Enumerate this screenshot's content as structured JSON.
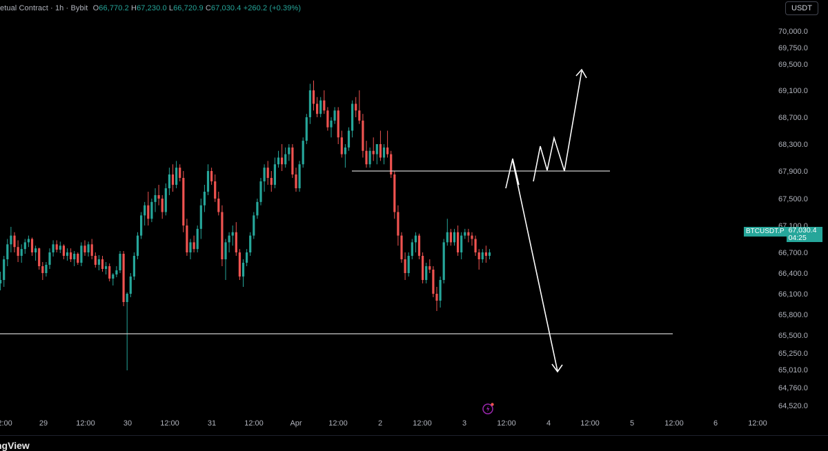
{
  "legend": {
    "title": "etual Contract · 1h · Bybit",
    "open_label": "O",
    "open": "66,770.2",
    "high_label": "H",
    "high": "67,230.0",
    "low_label": "L",
    "low": "66,720.9",
    "close_label": "C",
    "close": "67,030.4",
    "change": "+260.2 (+0.39%)"
  },
  "toolbar": {
    "currency_button": "USDT"
  },
  "price_tag": {
    "symbol": "BTCUSDT.P",
    "price": "67,030.4",
    "countdown": "04:25"
  },
  "footer": {
    "brand": "ngView"
  },
  "colors": {
    "up": "#26a69a",
    "down": "#ef5350",
    "background": "#000000",
    "drawing": "#ffffff",
    "alert": "#9c27b0"
  },
  "icons": {
    "alert": "alert-lightning-icon"
  },
  "chart_data": {
    "type": "candlestick",
    "y_ticks": [
      "70,000.0",
      "69,750.0",
      "69,500.0",
      "69,100.0",
      "68,700.0",
      "68,300.0",
      "67,900.0",
      "67,500.0",
      "67,100.0",
      "66,700.0",
      "66,400.0",
      "66,100.0",
      "65,800.0",
      "65,500.0",
      "65,250.0",
      "65,010.0",
      "64,760.0",
      "64,520.0"
    ],
    "x_ticks": [
      "12:00",
      "29",
      "12:00",
      "30",
      "12:00",
      "31",
      "12:00",
      "Apr",
      "12:00",
      "2",
      "12:00",
      "3",
      "12:00",
      "4",
      "12:00",
      "5",
      "12:00",
      "6",
      "12:00"
    ],
    "horizontal_levels": [
      67880,
      65520
    ],
    "projection_paths": [
      [
        [
          67620,
          0
        ],
        [
          68050,
          2
        ],
        [
          67800,
          5
        ]
      ],
      [
        [
          67870,
          0
        ],
        [
          68250,
          1
        ],
        [
          67870,
          2
        ],
        [
          68350,
          3
        ],
        [
          67880,
          4
        ],
        [
          69480,
          6
        ]
      ],
      [
        [
          68050,
          0
        ],
        [
          65000,
          2
        ]
      ]
    ],
    "candles": [
      [
        66250,
        66420,
        66150,
        66300
      ],
      [
        66300,
        66650,
        66200,
        66600
      ],
      [
        66600,
        66900,
        66500,
        66820
      ],
      [
        66820,
        67080,
        66700,
        66950
      ],
      [
        66950,
        67000,
        66700,
        66780
      ],
      [
        66780,
        66880,
        66560,
        66650
      ],
      [
        66650,
        66820,
        66550,
        66750
      ],
      [
        66750,
        66900,
        66680,
        66850
      ],
      [
        66850,
        66950,
        66780,
        66900
      ],
      [
        66900,
        66920,
        66650,
        66700
      ],
      [
        66700,
        66800,
        66580,
        66760
      ],
      [
        66760,
        66770,
        66450,
        66500
      ],
      [
        66500,
        66560,
        66300,
        66400
      ],
      [
        66400,
        66560,
        66350,
        66520
      ],
      [
        66520,
        66760,
        66460,
        66700
      ],
      [
        66700,
        66880,
        66640,
        66820
      ],
      [
        66820,
        66880,
        66700,
        66740
      ],
      [
        66740,
        66860,
        66690,
        66800
      ],
      [
        66800,
        66820,
        66600,
        66650
      ],
      [
        66650,
        66760,
        66580,
        66700
      ],
      [
        66700,
        66760,
        66560,
        66600
      ],
      [
        66600,
        66720,
        66500,
        66680
      ],
      [
        66680,
        66700,
        66520,
        66550
      ],
      [
        66550,
        66850,
        66500,
        66800
      ],
      [
        66800,
        66880,
        66650,
        66700
      ],
      [
        66700,
        66860,
        66640,
        66820
      ],
      [
        66820,
        66900,
        66600,
        66650
      ],
      [
        66650,
        66700,
        66480,
        66520
      ],
      [
        66520,
        66660,
        66440,
        66600
      ],
      [
        66600,
        66650,
        66420,
        66460
      ],
      [
        66460,
        66560,
        66380,
        66500
      ],
      [
        66500,
        66540,
        66280,
        66320
      ],
      [
        66320,
        66400,
        66220,
        66380
      ],
      [
        66380,
        66500,
        66340,
        66440
      ],
      [
        66440,
        66720,
        66400,
        66680
      ],
      [
        66680,
        66720,
        65920,
        65980
      ],
      [
        65980,
        66120,
        65000,
        66100
      ],
      [
        66100,
        66400,
        66050,
        66350
      ],
      [
        66350,
        66700,
        66300,
        66650
      ],
      [
        66650,
        67000,
        66600,
        66950
      ],
      [
        66950,
        67300,
        66900,
        67250
      ],
      [
        67250,
        67450,
        67100,
        67400
      ],
      [
        67400,
        67600,
        67100,
        67200
      ],
      [
        67200,
        67500,
        67150,
        67450
      ],
      [
        67450,
        67650,
        67300,
        67550
      ],
      [
        67550,
        67700,
        67400,
        67500
      ],
      [
        67500,
        67550,
        67200,
        67300
      ],
      [
        67300,
        67720,
        67250,
        67650
      ],
      [
        67650,
        67950,
        67550,
        67850
      ],
      [
        67850,
        68000,
        67600,
        67700
      ],
      [
        67700,
        68050,
        67650,
        67950
      ],
      [
        67950,
        68000,
        67750,
        67800
      ],
      [
        67800,
        67900,
        67000,
        67100
      ],
      [
        67100,
        67200,
        66650,
        66700
      ],
      [
        66700,
        66900,
        66600,
        66850
      ],
      [
        66850,
        66950,
        66700,
        66750
      ],
      [
        66750,
        67100,
        66700,
        67050
      ],
      [
        67050,
        67500,
        66900,
        67400
      ],
      [
        67400,
        67700,
        67300,
        67600
      ],
      [
        67600,
        68000,
        67550,
        67900
      ],
      [
        67900,
        67950,
        67700,
        67750
      ],
      [
        67750,
        67850,
        67450,
        67500
      ],
      [
        67500,
        67600,
        67250,
        67300
      ],
      [
        67300,
        67400,
        66500,
        66600
      ],
      [
        66600,
        66900,
        66300,
        66850
      ],
      [
        66850,
        67000,
        66700,
        66950
      ],
      [
        66950,
        67100,
        66800,
        67000
      ],
      [
        67000,
        67150,
        66650,
        66700
      ],
      [
        66700,
        66750,
        66300,
        66350
      ],
      [
        66350,
        66600,
        66200,
        66550
      ],
      [
        66550,
        66750,
        66500,
        66700
      ],
      [
        66700,
        67000,
        66650,
        66950
      ],
      [
        66950,
        67300,
        66900,
        67250
      ],
      [
        67250,
        67500,
        67200,
        67450
      ],
      [
        67450,
        67800,
        67400,
        67750
      ],
      [
        67750,
        68000,
        67600,
        67950
      ],
      [
        67950,
        68050,
        67700,
        67800
      ],
      [
        67800,
        67900,
        67600,
        67700
      ],
      [
        67700,
        68100,
        67650,
        68000
      ],
      [
        68000,
        68200,
        67950,
        68100
      ],
      [
        68100,
        68300,
        67900,
        68000
      ],
      [
        68000,
        68250,
        67950,
        68150
      ],
      [
        68150,
        68300,
        68050,
        68250
      ],
      [
        68250,
        68300,
        67800,
        67850
      ],
      [
        67850,
        67950,
        67600,
        67650
      ],
      [
        67650,
        68050,
        67600,
        68000
      ],
      [
        68000,
        68400,
        67950,
        68350
      ],
      [
        68350,
        68750,
        68300,
        68700
      ],
      [
        68700,
        69200,
        68600,
        69100
      ],
      [
        69100,
        69250,
        68800,
        68900
      ],
      [
        68900,
        69000,
        68700,
        68750
      ],
      [
        68750,
        69000,
        68700,
        68950
      ],
      [
        68950,
        69100,
        68750,
        68800
      ],
      [
        68800,
        68850,
        68500,
        68550
      ],
      [
        68550,
        68700,
        68400,
        68650
      ],
      [
        68650,
        68850,
        68600,
        68800
      ],
      [
        68800,
        68850,
        68300,
        68400
      ],
      [
        68400,
        68500,
        68100,
        68150
      ],
      [
        68150,
        68300,
        67950,
        68250
      ],
      [
        68250,
        68550,
        68200,
        68500
      ],
      [
        68500,
        68950,
        68400,
        68900
      ],
      [
        68900,
        69000,
        68700,
        68800
      ],
      [
        68800,
        69100,
        68600,
        68650
      ],
      [
        68650,
        68750,
        68100,
        68200
      ],
      [
        68200,
        68350,
        67950,
        68000
      ],
      [
        68000,
        68250,
        67950,
        68200
      ],
      [
        68200,
        68400,
        68050,
        68150
      ],
      [
        68150,
        68300,
        68000,
        68300
      ],
      [
        68300,
        68500,
        68050,
        68100
      ],
      [
        68100,
        68300,
        68000,
        68250
      ],
      [
        68250,
        68500,
        68100,
        68150
      ],
      [
        68150,
        68200,
        67800,
        67850
      ],
      [
        67850,
        67900,
        67200,
        67300
      ],
      [
        67300,
        67400,
        66800,
        66950
      ],
      [
        66950,
        67000,
        66550,
        66600
      ],
      [
        66600,
        66700,
        66300,
        66400
      ],
      [
        66400,
        66700,
        66350,
        66650
      ],
      [
        66650,
        66900,
        66600,
        66850
      ],
      [
        66850,
        67000,
        66700,
        66950
      ],
      [
        66950,
        66980,
        66600,
        66650
      ],
      [
        66650,
        66700,
        66250,
        66300
      ],
      [
        66300,
        66550,
        66250,
        66500
      ],
      [
        66500,
        66600,
        66400,
        66450
      ],
      [
        66450,
        66500,
        66050,
        66100
      ],
      [
        66100,
        66200,
        65850,
        66000
      ],
      [
        66000,
        66350,
        65900,
        66300
      ],
      [
        66300,
        66900,
        66250,
        66850
      ],
      [
        66850,
        67200,
        66800,
        67000
      ],
      [
        67000,
        67050,
        66800,
        66850
      ],
      [
        66850,
        67050,
        66800,
        67000
      ],
      [
        67000,
        67100,
        66650,
        66700
      ],
      [
        66700,
        67000,
        66600,
        66950
      ],
      [
        66950,
        67050,
        66900,
        67000
      ],
      [
        67000,
        67050,
        66850,
        66950
      ],
      [
        66950,
        67000,
        66800,
        66900
      ],
      [
        66900,
        66950,
        66650,
        66700
      ],
      [
        66700,
        66750,
        66450,
        66600
      ],
      [
        66600,
        66750,
        66550,
        66700
      ],
      [
        66700,
        66800,
        66550,
        66650
      ],
      [
        66650,
        66750,
        66600,
        66700
      ],
      [
        66700,
        66800,
        66650,
        66770
      ],
      [
        66770,
        67230,
        66720,
        67030
      ]
    ]
  }
}
